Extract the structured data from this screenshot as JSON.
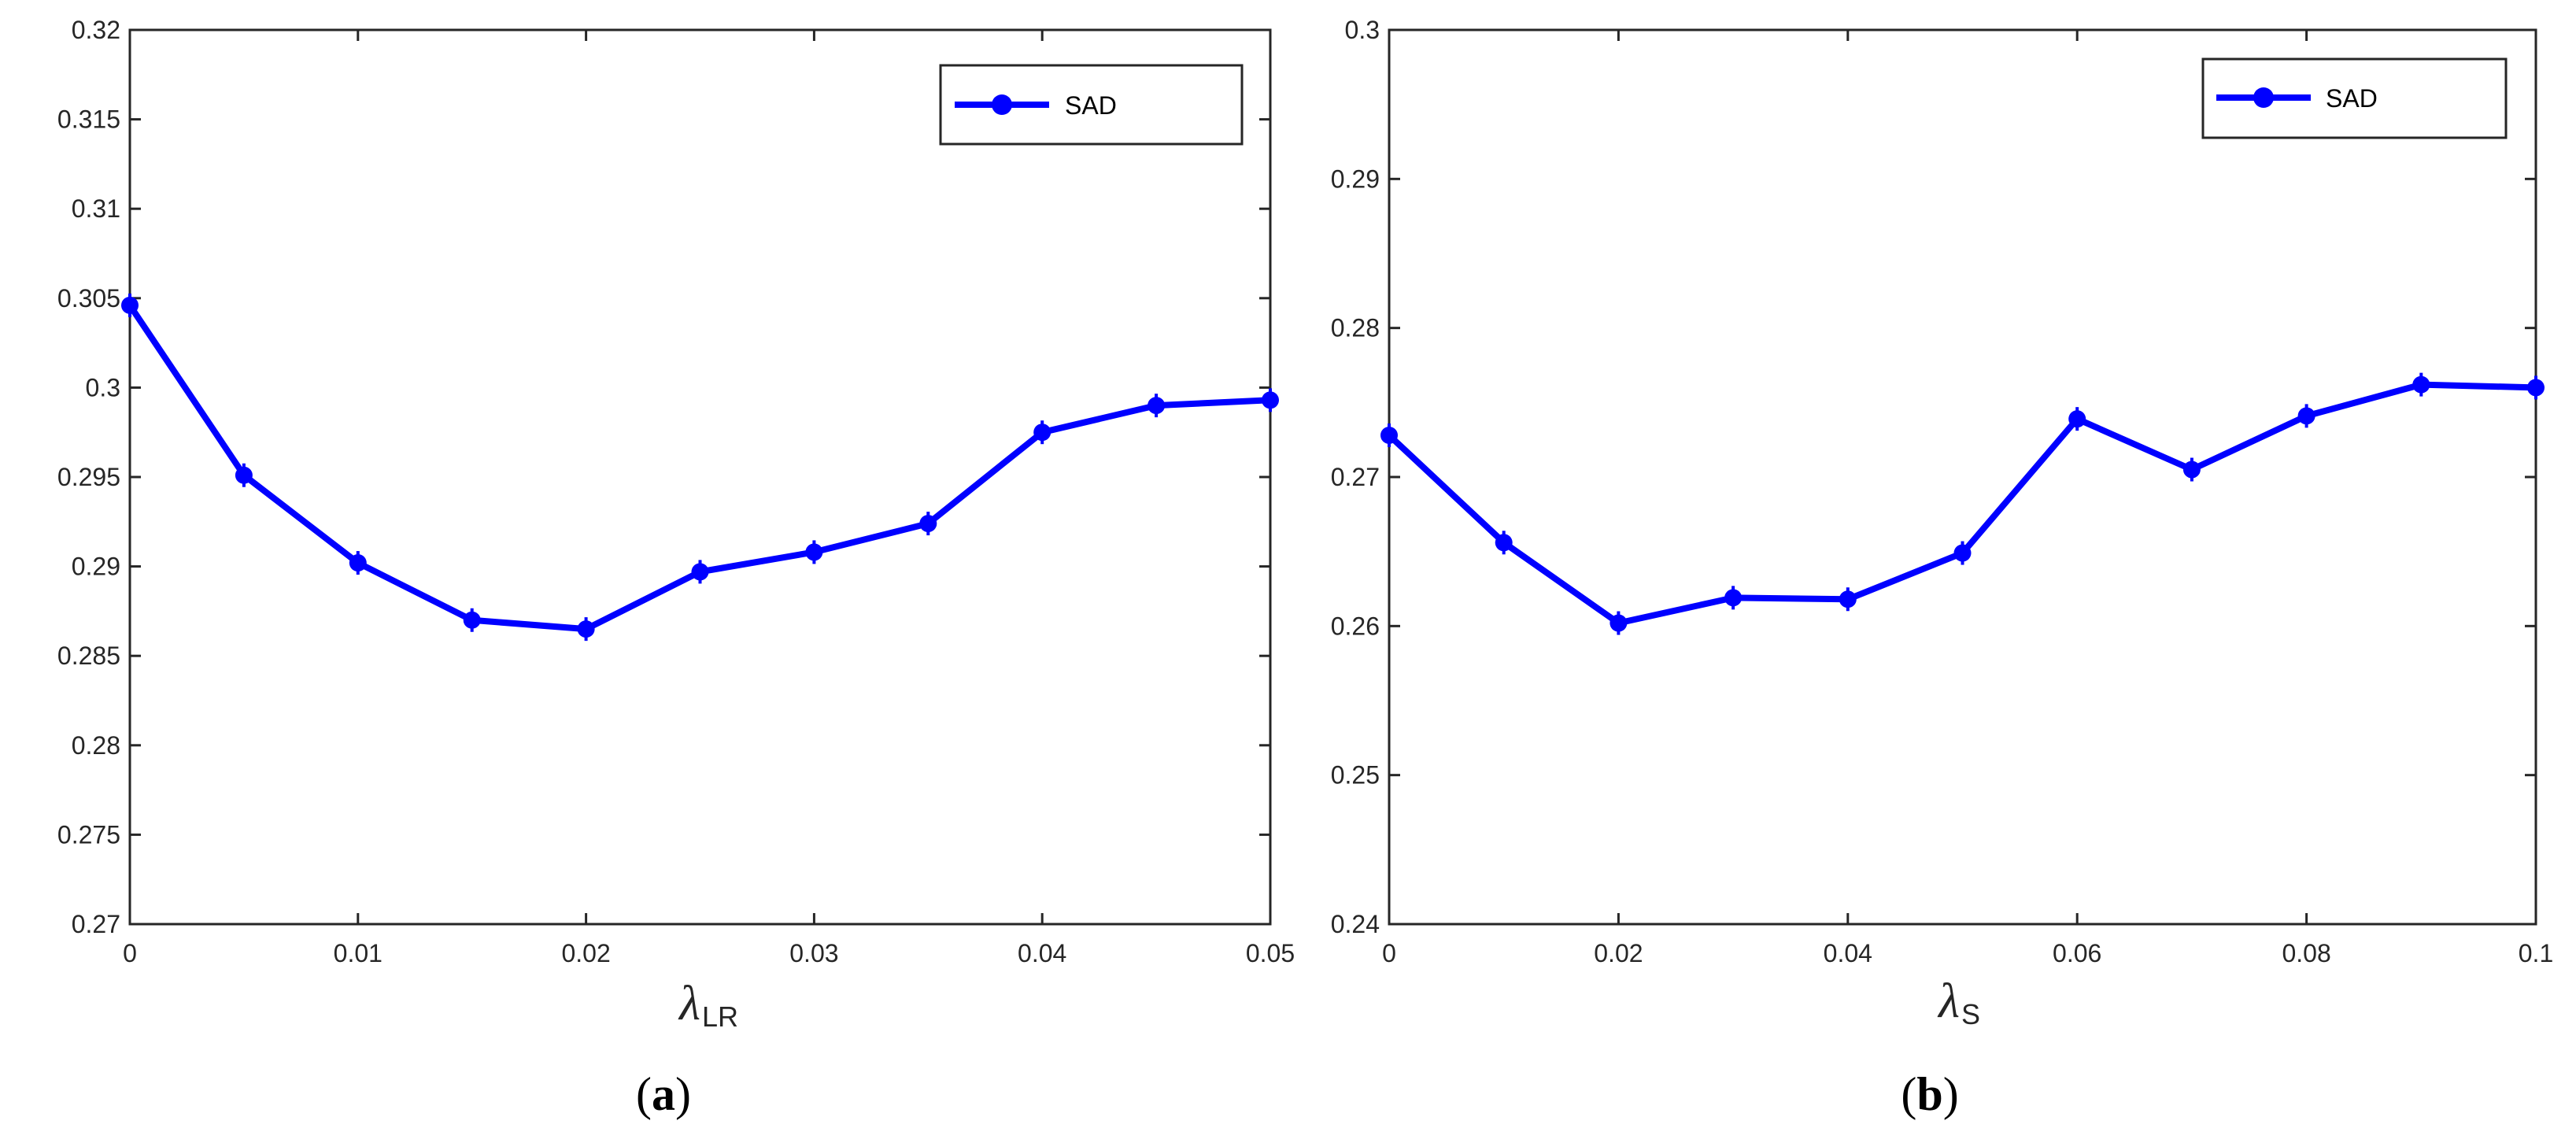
{
  "chart_data": [
    {
      "type": "line",
      "panel_label": {
        "open": "(",
        "letter": "a",
        "close": ")"
      },
      "xlabel": {
        "symbol": "λ",
        "subscript": "LR"
      },
      "ylabel": "",
      "x": [
        0,
        0.005,
        0.01,
        0.015,
        0.02,
        0.025,
        0.03,
        0.035,
        0.04,
        0.045,
        0.05
      ],
      "series": [
        {
          "name": "SAD",
          "color": "#0000ff",
          "values": [
            0.3046,
            0.2951,
            0.2902,
            0.287,
            0.2865,
            0.2897,
            0.2908,
            0.2924,
            0.2975,
            0.299,
            0.2993
          ]
        }
      ],
      "xlim": [
        0,
        0.05
      ],
      "ylim": [
        0.27,
        0.32
      ],
      "xticks": [
        0,
        0.01,
        0.02,
        0.03,
        0.04,
        0.05
      ],
      "xtick_labels": [
        "0",
        "0.01",
        "0.02",
        "0.03",
        "0.04",
        "0.05"
      ],
      "yticks": [
        0.27,
        0.275,
        0.28,
        0.285,
        0.29,
        0.295,
        0.3,
        0.305,
        0.31,
        0.315,
        0.32
      ],
      "ytick_labels": [
        "0.27",
        "0.275",
        "0.28",
        "0.285",
        "0.29",
        "0.295",
        "0.3",
        "0.305",
        "0.31",
        "0.315",
        "0.32"
      ],
      "grid": false,
      "legend_position": "top-right"
    },
    {
      "type": "line",
      "panel_label": {
        "open": "(",
        "letter": "b",
        "close": ")"
      },
      "xlabel": {
        "symbol": "λ",
        "subscript": "S"
      },
      "ylabel": "",
      "x": [
        0,
        0.01,
        0.02,
        0.03,
        0.04,
        0.05,
        0.06,
        0.07,
        0.08,
        0.09,
        0.1
      ],
      "series": [
        {
          "name": "SAD",
          "color": "#0000ff",
          "values": [
            0.2728,
            0.2656,
            0.2602,
            0.2619,
            0.2618,
            0.2649,
            0.2739,
            0.2705,
            0.2741,
            0.2762,
            0.276
          ]
        }
      ],
      "xlim": [
        0,
        0.1
      ],
      "ylim": [
        0.24,
        0.3
      ],
      "xticks": [
        0,
        0.02,
        0.04,
        0.06,
        0.08,
        0.1
      ],
      "xtick_labels": [
        "0",
        "0.02",
        "0.04",
        "0.06",
        "0.08",
        "0.1"
      ],
      "yticks": [
        0.24,
        0.25,
        0.26,
        0.27,
        0.28,
        0.29,
        0.3
      ],
      "ytick_labels": [
        "0.24",
        "0.25",
        "0.26",
        "0.27",
        "0.28",
        "0.29",
        "0.3"
      ],
      "grid": false,
      "legend_position": "top-right"
    }
  ]
}
